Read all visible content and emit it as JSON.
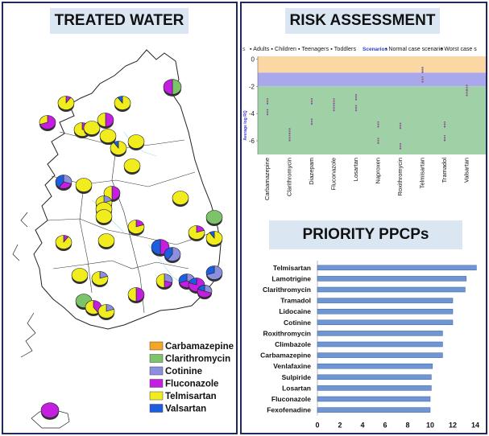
{
  "treated_water": {
    "title": "TREATED WATER",
    "legend": [
      {
        "label": "Carbamazepine",
        "color": "#f5a623"
      },
      {
        "label": "Clarithromycin",
        "color": "#7cc36b"
      },
      {
        "label": "Cotinine",
        "color": "#8c8fe0"
      },
      {
        "label": "Fluconazole",
        "color": "#c41ee0"
      },
      {
        "label": "Telmisartan",
        "color": "#f0ec1e"
      },
      {
        "label": "Valsartan",
        "color": "#1d5ee0"
      }
    ]
  },
  "risk_assessment": {
    "title": "RISK ASSESSMENT",
    "legend_text": {
      "lead": "s",
      "groups": [
        "Adults",
        "Children",
        "Teenagers",
        "Toddlers"
      ],
      "scenarios_label": "Scenarios",
      "normal": "Normal case scenario",
      "worst": "Worst case s"
    },
    "ylabel": "Average log RQ",
    "bands": {
      "high": "#fbd7a4",
      "medium": "#aaa8ec",
      "low": "#9fd0a6"
    }
  },
  "priority": {
    "title": "PRIORITY PPCPs"
  },
  "chart_data": [
    {
      "type": "scatter",
      "title": "RISK ASSESSMENT",
      "ylabel": "Average log RQ",
      "xlabel": "",
      "ylim": [
        -7,
        0.2
      ],
      "yticks": [
        0,
        -2,
        -4,
        -6
      ],
      "categories": [
        "Carbamazepine",
        "Clarithromycin",
        "Diazepam",
        "Fluconazole",
        "Losartan",
        "Naproxen",
        "Roxithromycin",
        "Telmisartan",
        "Tramadol",
        "Valsartan"
      ],
      "series": [
        {
          "name": "Normal case scenario",
          "values": [
            -3.1,
            -5.3,
            -3.1,
            -3.1,
            -2.8,
            -4.8,
            -4.9,
            -0.8,
            -4.8,
            -2.1
          ]
        },
        {
          "name": "Worst case scenario",
          "values": [
            -3.9,
            -5.8,
            -4.6,
            -3.6,
            -3.6,
            -6.0,
            -6.4,
            -1.5,
            -5.8,
            -2.5
          ]
        }
      ]
    },
    {
      "type": "bar",
      "orientation": "horizontal",
      "title": "PRIORITY PPCPs",
      "xlim": [
        0,
        14
      ],
      "xticks": [
        0,
        2,
        4,
        6,
        8,
        10,
        12,
        14
      ],
      "categories": [
        "Telmisartan",
        "Lamotrigine",
        "Clarithromycin",
        "Tramadol",
        "Lidocaine",
        "Cotinine",
        "Roxithromycin",
        "Climbazole",
        "Carbamazepine",
        "Venlafaxine",
        "Sulpiride",
        "Losartan",
        "Fluconazole",
        "Fexofenadine"
      ],
      "values": [
        14.1,
        13.2,
        13.1,
        12.0,
        12.0,
        12.0,
        11.1,
        11.1,
        11.1,
        10.2,
        10.1,
        10.1,
        10.0,
        10.0
      ]
    }
  ]
}
